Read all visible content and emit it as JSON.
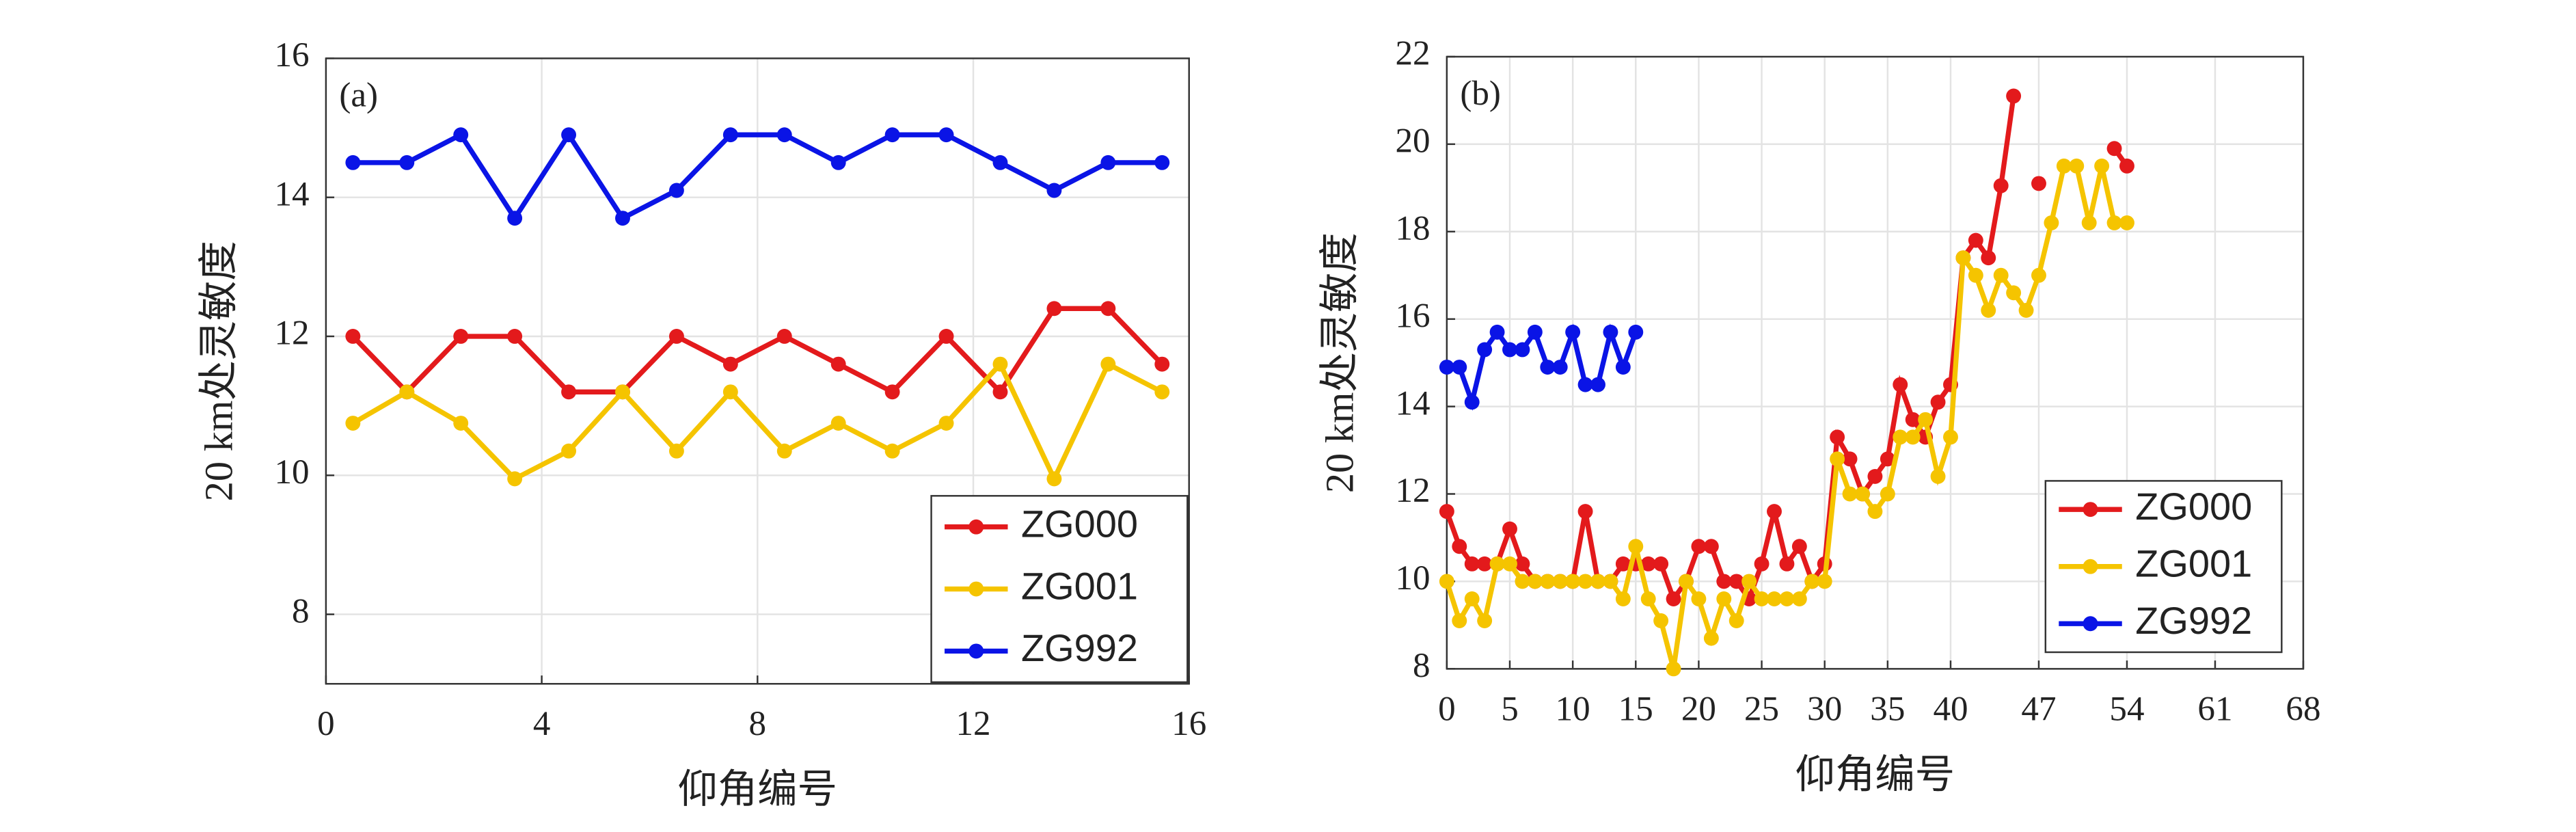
{
  "chart_data": [
    {
      "type": "line",
      "panel_label": "(a)",
      "x_label": "仰角编号",
      "y_label": "20 km处灵敏度",
      "x": [
        0.5,
        1.5,
        2.5,
        3.5,
        4.5,
        5.5,
        6.5,
        7.5,
        8.5,
        9.5,
        10.5,
        11.5,
        12.5,
        13.5,
        14.5,
        15.5
      ],
      "series": [
        {
          "name": "ZG000",
          "color": "#e31a1c",
          "values": [
            12,
            11.2,
            12,
            12,
            11.2,
            11.2,
            12,
            11.6,
            12,
            11.6,
            11.2,
            12,
            11.2,
            12.4,
            12.4,
            11.6
          ]
        },
        {
          "name": "ZG001",
          "color": "#f5c400",
          "values": [
            10.75,
            11.2,
            10.75,
            9.95,
            10.35,
            11.2,
            10.35,
            11.2,
            10.35,
            10.75,
            10.35,
            10.75,
            11.6,
            9.95,
            11.6,
            11.2
          ]
        },
        {
          "name": "ZG992",
          "color": "#0a14e6",
          "values": [
            14.5,
            14.5,
            14.9,
            13.7,
            14.9,
            13.7,
            14.1,
            14.9,
            14.9,
            14.5,
            14.9,
            14.9,
            14.5,
            14.1,
            14.5,
            14.5
          ]
        }
      ],
      "xlim": [
        0,
        16
      ],
      "xticks": [
        0,
        4,
        8,
        12,
        16
      ],
      "ylim": [
        7,
        16
      ],
      "yticks": [
        8,
        10,
        12,
        14,
        16
      ],
      "grid": true,
      "legend": "lower right"
    },
    {
      "type": "line",
      "panel_label": "(b)",
      "x_label": "仰角编号",
      "y_label": "20 km处灵敏度",
      "x": [
        0,
        1,
        2,
        3,
        4,
        5,
        6,
        7,
        8,
        9,
        10,
        11,
        12,
        13,
        14,
        15,
        16,
        17,
        18,
        19,
        20,
        21,
        22,
        23,
        24,
        25,
        26,
        27,
        28,
        29,
        30,
        31,
        32,
        33,
        34,
        35,
        36,
        37,
        38,
        39,
        40,
        41,
        42,
        43,
        44,
        45,
        46,
        47,
        48,
        49,
        50,
        51,
        52,
        53,
        54
      ],
      "series": [
        {
          "name": "ZG000",
          "color": "#e31a1c",
          "values": [
            11.6,
            10.8,
            10.4,
            10.4,
            10.4,
            11.2,
            10.4,
            10,
            10,
            10,
            10,
            11.6,
            10,
            10,
            10.4,
            10.4,
            10.4,
            10.4,
            9.6,
            10,
            10.8,
            10.8,
            10,
            10,
            9.6,
            10.4,
            11.6,
            10.4,
            10.8,
            10,
            10.4,
            13.3,
            12.8,
            12,
            12.4,
            12.8,
            14.5,
            13.7,
            13.3,
            14.1,
            14.5,
            17.4,
            17.8,
            17.4,
            19.05,
            21.1,
            null,
            19.1,
            null,
            null,
            null,
            null,
            null,
            19.9,
            19.5
          ]
        },
        {
          "name": "ZG001",
          "color": "#f5c400",
          "values": [
            10,
            9.1,
            9.6,
            9.1,
            10.4,
            10.4,
            10,
            10,
            10,
            10,
            10,
            10,
            10,
            10,
            9.6,
            10.8,
            9.6,
            9.1,
            8,
            10,
            9.6,
            8.7,
            9.6,
            9.1,
            10,
            9.6,
            9.6,
            9.6,
            9.6,
            10,
            10,
            12.8,
            12,
            12,
            11.6,
            12,
            13.3,
            13.3,
            13.7,
            12.4,
            13.3,
            17.4,
            17,
            16.2,
            17,
            16.6,
            16.2,
            17,
            18.2,
            19.5,
            19.5,
            18.2,
            19.5,
            18.2,
            18.2
          ]
        },
        {
          "name": "ZG992",
          "color": "#0a14e6",
          "values": [
            14.9,
            14.9,
            14.1,
            15.3,
            15.7,
            15.3,
            15.3,
            15.7,
            14.9,
            14.9,
            15.7,
            14.5,
            14.5,
            15.7,
            14.9,
            15.7,
            null,
            null,
            null,
            null,
            null,
            null,
            null,
            null,
            null,
            null,
            null,
            null,
            null,
            null,
            null,
            null,
            null,
            null,
            null,
            null,
            null,
            null,
            null,
            null,
            null,
            null,
            null,
            null,
            null,
            null,
            null,
            null,
            null,
            null,
            null,
            null,
            null,
            null,
            null
          ]
        }
      ],
      "xlim": [
        0,
        68
      ],
      "xticks": [
        0,
        5,
        10,
        15,
        20,
        25,
        30,
        35,
        40,
        47,
        54,
        61,
        68
      ],
      "ylim": [
        8,
        22
      ],
      "yticks": [
        8,
        10,
        12,
        14,
        16,
        18,
        20,
        22
      ],
      "grid": true,
      "legend": "lower right"
    }
  ]
}
